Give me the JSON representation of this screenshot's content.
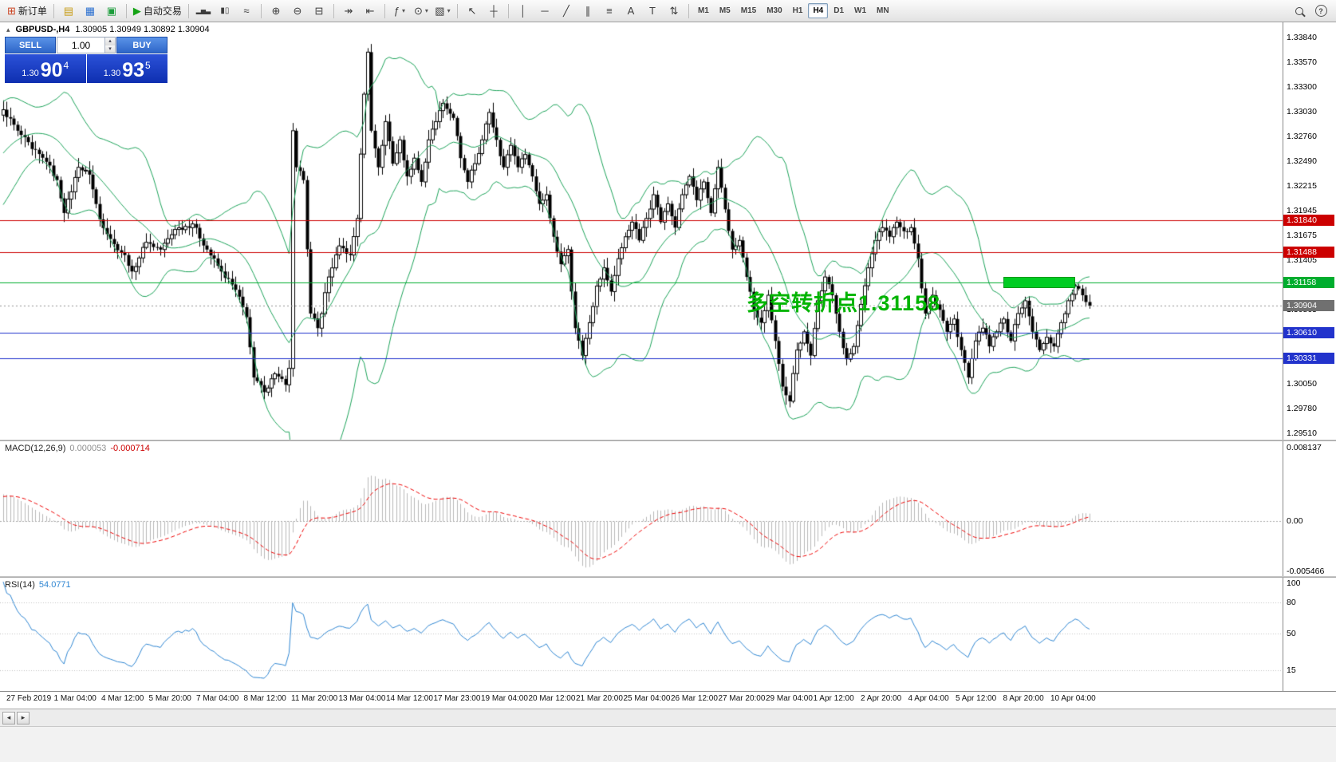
{
  "toolbar": {
    "caret_glyph": "▾",
    "groups": [
      {
        "items": [
          {
            "name": "new-order-button",
            "glyph": "⊞",
            "glyph_color": "#cc4422",
            "label": "新订单"
          }
        ]
      },
      {
        "items": [
          {
            "name": "market-watch-icon",
            "glyph": "▤",
            "glyph_color": "#c79a10"
          },
          {
            "name": "navigator-icon",
            "glyph": "▦",
            "glyph_color": "#2a6fd0"
          },
          {
            "name": "terminal-icon",
            "glyph": "▣",
            "glyph_color": "#1a9c3a"
          }
        ]
      },
      {
        "items": [
          {
            "name": "autotrading-button",
            "glyph": "▶",
            "glyph_color": "#15a315",
            "label": "自动交易"
          }
        ]
      },
      {
        "items": [
          {
            "name": "bar-chart-icon",
            "glyph": "▂▅▃",
            "glyph_size": 8
          },
          {
            "name": "candlestick-icon",
            "glyph": "▮▯",
            "glyph_size": 10
          },
          {
            "name": "line-chart-icon",
            "glyph": "≈"
          }
        ]
      },
      {
        "items": [
          {
            "name": "zoom-in-icon",
            "glyph": "⊕"
          },
          {
            "name": "zoom-out-icon",
            "glyph": "⊖"
          },
          {
            "name": "tile-windows-icon",
            "glyph": "⊟"
          }
        ]
      },
      {
        "items": [
          {
            "name": "auto-scroll-icon",
            "glyph": "↠"
          },
          {
            "name": "chart-shift-icon",
            "glyph": "⇤"
          }
        ]
      },
      {
        "items": [
          {
            "name": "indicators-icon",
            "glyph": "ƒ",
            "caret": true
          },
          {
            "name": "periods-icon",
            "glyph": "⊙",
            "caret": true
          },
          {
            "name": "templates-icon",
            "glyph": "▧",
            "caret": true
          }
        ]
      },
      {
        "items": [
          {
            "name": "cursor-icon",
            "glyph": "↖"
          },
          {
            "name": "crosshair-icon",
            "glyph": "┼"
          }
        ]
      },
      {
        "items": [
          {
            "name": "vertical-line-icon",
            "glyph": "│"
          },
          {
            "name": "horizontal-line-icon",
            "glyph": "─"
          },
          {
            "name": "trendline-icon",
            "glyph": "╱"
          },
          {
            "name": "channel-icon",
            "glyph": "∥"
          },
          {
            "name": "fibonacci-icon",
            "glyph": "≡"
          },
          {
            "name": "text-icon",
            "glyph": "A"
          },
          {
            "name": "label-icon",
            "glyph": "T"
          },
          {
            "name": "arrows-icon",
            "glyph": "⇅"
          }
        ]
      }
    ],
    "timeframes": {
      "items": [
        "M1",
        "M5",
        "M15",
        "M30",
        "H1",
        "H4",
        "D1",
        "W1",
        "MN"
      ],
      "active": "H4"
    },
    "right_icons": [
      {
        "name": "search-icon"
      },
      {
        "name": "help-icon",
        "glyph": "?"
      }
    ]
  },
  "chart": {
    "symbol_info": "GBPUSD-,H4",
    "ohlc": "1.30905 1.30949 1.30892 1.30904",
    "collapse_glyph": "▴"
  },
  "oct": {
    "sell_label": "SELL",
    "buy_label": "BUY",
    "lot": "1.00",
    "spin_up": "▴",
    "spin_down": "▾",
    "sell_price_prefix": "1.30",
    "sell_price_big": "90",
    "sell_price_sup": "4",
    "buy_price_prefix": "1.30",
    "buy_price_big": "93",
    "buy_price_sup": "5"
  },
  "annotation": {
    "text": "多空转折点1.31158",
    "color": "#00b400"
  },
  "price_axis": {
    "labels": [
      "1.33840",
      "1.33570",
      "1.33300",
      "1.33030",
      "1.32760",
      "1.32490",
      "1.32215",
      "1.31945",
      "1.31675",
      "1.31405",
      "1.31135",
      "1.30865",
      "1.30595",
      "1.30325",
      "1.30050",
      "1.29780",
      "1.29510"
    ]
  },
  "macd": {
    "name": "MACD(12,26,9)",
    "value_main": "0.000053",
    "value_signal": "-0.000714",
    "axis": [
      {
        "text": "0.008137",
        "value": 0.008137
      },
      {
        "text": "0.00",
        "value": 0
      },
      {
        "text": "-0.005466",
        "value": -0.005466
      }
    ],
    "ylim": [
      -0.005466,
      0.008137
    ],
    "histogram_color": "#b8b8b8",
    "signal_color": "#ee0000"
  },
  "rsi": {
    "name": "RSI(14)",
    "value": "54.0771",
    "axis": [
      {
        "text": "100",
        "value": 100
      },
      {
        "text": "80",
        "value": 80
      },
      {
        "text": "50",
        "value": 50
      },
      {
        "text": "15",
        "value": 15
      }
    ],
    "level_lines": [
      80,
      50,
      15
    ],
    "line_color": "#2f86d2"
  },
  "time_axis": {
    "labels": [
      "27 Feb 2019",
      "1 Mar 04:00",
      "4 Mar 12:00",
      "5 Mar 20:00",
      "7 Mar 04:00",
      "8 Mar 12:00",
      "11 Mar 20:00",
      "13 Mar 04:00",
      "14 Mar 12:00",
      "17 Mar 23:00",
      "19 Mar 04:00",
      "20 Mar 12:00",
      "21 Mar 20:00",
      "25 Mar 04:00",
      "26 Mar 12:00",
      "27 Mar 20:00",
      "29 Mar 04:00",
      "1 Apr 12:00",
      "2 Apr 20:00",
      "4 Apr 04:00",
      "5 Apr 12:00",
      "8 Apr 20:00",
      "10 Apr 04:00"
    ]
  },
  "tabbar": {
    "left_glyph": "◂",
    "right_glyph": "▸"
  },
  "chart_data": {
    "type": "candlestick",
    "symbol": "GBPUSD-",
    "timeframe": "H4",
    "bid": "1.30904",
    "ask": "1.30935",
    "last_close": 1.30904,
    "ylim": [
      1.2944,
      1.34006
    ],
    "candle_count": 305,
    "prehistory": {
      "bars": 30,
      "start": 1.3155
    },
    "bull_color": "#ffffff",
    "bear_color": "#000000",
    "bollinger": {
      "period": 20,
      "deviation": 2,
      "color": "#1da35a"
    },
    "levels": [
      {
        "price": 1.3184,
        "label": "1.31840",
        "color": "#cc0000",
        "style": "solid"
      },
      {
        "price": 1.31488,
        "label": "1.31488",
        "color": "#cc0000",
        "style": "solid"
      },
      {
        "price": 1.31158,
        "label": "1.31158",
        "color": "#00ad2e",
        "style": "solid"
      },
      {
        "price": 1.30904,
        "label": "1.30904",
        "color": "#707070",
        "style": "bid"
      },
      {
        "price": 1.3061,
        "label": "1.30610",
        "color": "#2233cc",
        "style": "solid"
      },
      {
        "price": 1.30331,
        "label": "1.30331",
        "color": "#2233cc",
        "style": "solid"
      }
    ],
    "highlight_rect": {
      "index_start": 280,
      "index_end": 300,
      "price_top": 1.3122,
      "price_bottom": 1.311,
      "color": "#00cc22"
    },
    "anchors": [
      [
        0,
        1.3305
      ],
      [
        4,
        1.3282
      ],
      [
        8,
        1.3262
      ],
      [
        12,
        1.3248
      ],
      [
        15,
        1.3228
      ],
      [
        17,
        1.3192
      ],
      [
        21,
        1.3242
      ],
      [
        24,
        1.3234
      ],
      [
        27,
        1.3185
      ],
      [
        31,
        1.3158
      ],
      [
        34,
        1.3146
      ],
      [
        36,
        1.3128
      ],
      [
        40,
        1.316
      ],
      [
        44,
        1.3152
      ],
      [
        48,
        1.3174
      ],
      [
        53,
        1.318
      ],
      [
        57,
        1.3152
      ],
      [
        61,
        1.3128
      ],
      [
        65,
        1.3108
      ],
      [
        68,
        1.3078
      ],
      [
        70,
        1.3012
      ],
      [
        73,
        1.2996
      ],
      [
        76,
        1.3016
      ],
      [
        79,
        1.3004
      ],
      [
        80,
        1.3022
      ],
      [
        81,
        1.3282
      ],
      [
        82,
        1.3242
      ],
      [
        84,
        1.3228
      ],
      [
        86,
        1.3082
      ],
      [
        88,
        1.3066
      ],
      [
        91,
        1.3122
      ],
      [
        94,
        1.3156
      ],
      [
        97,
        1.3146
      ],
      [
        99,
        1.3186
      ],
      [
        101,
        1.3322
      ],
      [
        102,
        1.3368
      ],
      [
        103,
        1.3282
      ],
      [
        105,
        1.3242
      ],
      [
        107,
        1.3292
      ],
      [
        109,
        1.3246
      ],
      [
        111,
        1.3272
      ],
      [
        113,
        1.3232
      ],
      [
        115,
        1.3252
      ],
      [
        117,
        1.3226
      ],
      [
        119,
        1.3272
      ],
      [
        121,
        1.3292
      ],
      [
        123,
        1.3312
      ],
      [
        126,
        1.3296
      ],
      [
        128,
        1.3252
      ],
      [
        130,
        1.3226
      ],
      [
        132,
        1.3246
      ],
      [
        134,
        1.3272
      ],
      [
        136,
        1.3302
      ],
      [
        138,
        1.3272
      ],
      [
        140,
        1.3242
      ],
      [
        142,
        1.3266
      ],
      [
        144,
        1.3242
      ],
      [
        146,
        1.3256
      ],
      [
        148,
        1.3232
      ],
      [
        150,
        1.3202
      ],
      [
        152,
        1.3212
      ],
      [
        154,
        1.3166
      ],
      [
        156,
        1.3136
      ],
      [
        158,
        1.3152
      ],
      [
        160,
        1.3066
      ],
      [
        162,
        1.3036
      ],
      [
        164,
        1.3072
      ],
      [
        166,
        1.3112
      ],
      [
        168,
        1.3132
      ],
      [
        170,
        1.3106
      ],
      [
        172,
        1.3142
      ],
      [
        174,
        1.3166
      ],
      [
        176,
        1.3182
      ],
      [
        178,
        1.3162
      ],
      [
        180,
        1.3186
      ],
      [
        182,
        1.3212
      ],
      [
        184,
        1.3182
      ],
      [
        186,
        1.3202
      ],
      [
        188,
        1.3176
      ],
      [
        190,
        1.3212
      ],
      [
        192,
        1.3232
      ],
      [
        194,
        1.3206
      ],
      [
        196,
        1.3226
      ],
      [
        198,
        1.3192
      ],
      [
        200,
        1.3242
      ],
      [
        202,
        1.3196
      ],
      [
        204,
        1.3152
      ],
      [
        206,
        1.3162
      ],
      [
        208,
        1.3122
      ],
      [
        210,
        1.3086
      ],
      [
        212,
        1.3072
      ],
      [
        214,
        1.3102
      ],
      [
        216,
        1.3052
      ],
      [
        218,
        1.3002
      ],
      [
        220,
        1.2986
      ],
      [
        222,
        1.3042
      ],
      [
        224,
        1.3062
      ],
      [
        226,
        1.3036
      ],
      [
        228,
        1.3096
      ],
      [
        230,
        1.3122
      ],
      [
        232,
        1.3102
      ],
      [
        234,
        1.3062
      ],
      [
        236,
        1.3032
      ],
      [
        238,
        1.3046
      ],
      [
        240,
        1.3092
      ],
      [
        242,
        1.3132
      ],
      [
        244,
        1.3162
      ],
      [
        246,
        1.3176
      ],
      [
        248,
        1.3166
      ],
      [
        250,
        1.3182
      ],
      [
        252,
        1.3172
      ],
      [
        254,
        1.3176
      ],
      [
        256,
        1.3142
      ],
      [
        258,
        1.3082
      ],
      [
        260,
        1.3102
      ],
      [
        262,
        1.3086
      ],
      [
        264,
        1.3062
      ],
      [
        266,
        1.3076
      ],
      [
        268,
        1.3042
      ],
      [
        270,
        1.3012
      ],
      [
        272,
        1.3052
      ],
      [
        274,
        1.3066
      ],
      [
        276,
        1.3046
      ],
      [
        278,
        1.3062
      ],
      [
        280,
        1.3076
      ],
      [
        282,
        1.3052
      ],
      [
        284,
        1.3082
      ],
      [
        286,
        1.3096
      ],
      [
        288,
        1.3062
      ],
      [
        290,
        1.3042
      ],
      [
        292,
        1.3056
      ],
      [
        294,
        1.3046
      ],
      [
        296,
        1.3072
      ],
      [
        298,
        1.3096
      ],
      [
        300,
        1.3112
      ],
      [
        302,
        1.3102
      ],
      [
        304,
        1.30904
      ]
    ],
    "indicators": {
      "macd": [
        12,
        26,
        9
      ],
      "rsi": 14
    }
  }
}
